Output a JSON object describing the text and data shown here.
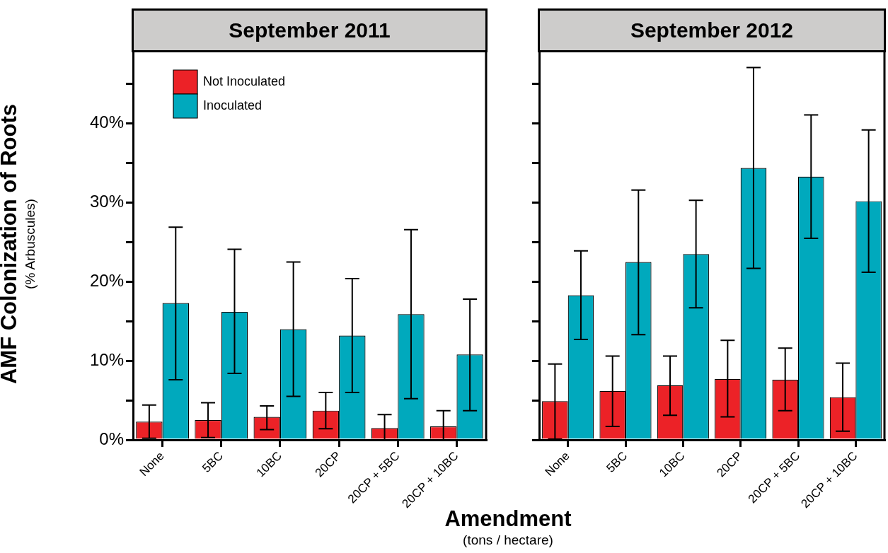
{
  "chart_data": [
    {
      "type": "bar",
      "title": "September 2011",
      "ylabel": "AMF Colonization of Roots\n(% Arbuscules)",
      "xlabel": "Amendment\n(tons / hectare)",
      "categories": [
        "None",
        "5BC",
        "10BC",
        "20CP",
        "20CP + 5BC",
        "20CP + 10BC"
      ],
      "series": [
        {
          "name": "Not Inoculated",
          "color": "#ec2227",
          "values": [
            2.3,
            2.5,
            2.9,
            3.7,
            1.5,
            1.7
          ],
          "errors": [
            [
              0.2,
              4.4
            ],
            [
              0.3,
              4.7
            ],
            [
              1.3,
              4.3
            ],
            [
              1.4,
              6.0
            ],
            [
              0,
              3.2
            ],
            [
              0,
              3.7
            ]
          ]
        },
        {
          "name": "Inoculated",
          "color": "#00a9bd",
          "values": [
            17.3,
            16.2,
            14.0,
            13.2,
            15.9,
            10.8
          ],
          "errors": [
            [
              7.6,
              26.9
            ],
            [
              8.4,
              24.1
            ],
            [
              5.5,
              22.5
            ],
            [
              6.0,
              20.4
            ],
            [
              5.2,
              26.6
            ],
            [
              3.7,
              17.8
            ]
          ]
        }
      ],
      "ylim": [
        0,
        49.2
      ],
      "yticks": [
        {
          "value": 0,
          "label": "0%"
        },
        {
          "value": 5,
          "label": null
        },
        {
          "value": 10,
          "label": "10%"
        },
        {
          "value": 15,
          "label": null
        },
        {
          "value": 20,
          "label": "20%"
        },
        {
          "value": 25,
          "label": null
        },
        {
          "value": 30,
          "label": "30%"
        },
        {
          "value": 35,
          "label": null
        },
        {
          "value": 40,
          "label": "40%"
        },
        {
          "value": 45,
          "label": null
        }
      ],
      "grid": false,
      "legend": "top left"
    },
    {
      "type": "bar",
      "title": "September 2012",
      "categories": [
        "None",
        "5BC",
        "10BC",
        "20CP",
        "20CP + 5BC",
        "20CP + 10BC"
      ],
      "series": [
        {
          "color": "#ec2227",
          "values": [
            4.9,
            6.2,
            6.9,
            7.7,
            7.6,
            5.4
          ],
          "errors": [
            [
              0.1,
              9.6
            ],
            [
              1.7,
              10.6
            ],
            [
              3.1,
              10.6
            ],
            [
              2.9,
              12.6
            ],
            [
              3.7,
              11.6
            ],
            [
              1.1,
              9.7
            ]
          ]
        },
        {
          "color": "#00a9bd",
          "values": [
            18.3,
            22.5,
            23.5,
            34.4,
            33.3,
            30.2
          ],
          "errors": [
            [
              12.7,
              23.9
            ],
            [
              13.3,
              31.6
            ],
            [
              16.7,
              30.3
            ],
            [
              21.7,
              47.1
            ],
            [
              25.5,
              41.1
            ],
            [
              21.2,
              39.2
            ]
          ]
        }
      ],
      "ylim": [
        0,
        49.2
      ],
      "yticks": [
        {
          "value": 0,
          "label": null
        },
        {
          "value": 5,
          "label": null
        },
        {
          "value": 10,
          "label": null
        },
        {
          "value": 15,
          "label": null
        },
        {
          "value": 20,
          "label": null
        },
        {
          "value": 25,
          "label": null
        },
        {
          "value": 30,
          "label": null
        },
        {
          "value": 35,
          "label": null
        },
        {
          "value": 40,
          "label": null
        },
        {
          "value": 45,
          "label": null
        }
      ],
      "grid": false,
      "tick_labels": "x"
    }
  ]
}
